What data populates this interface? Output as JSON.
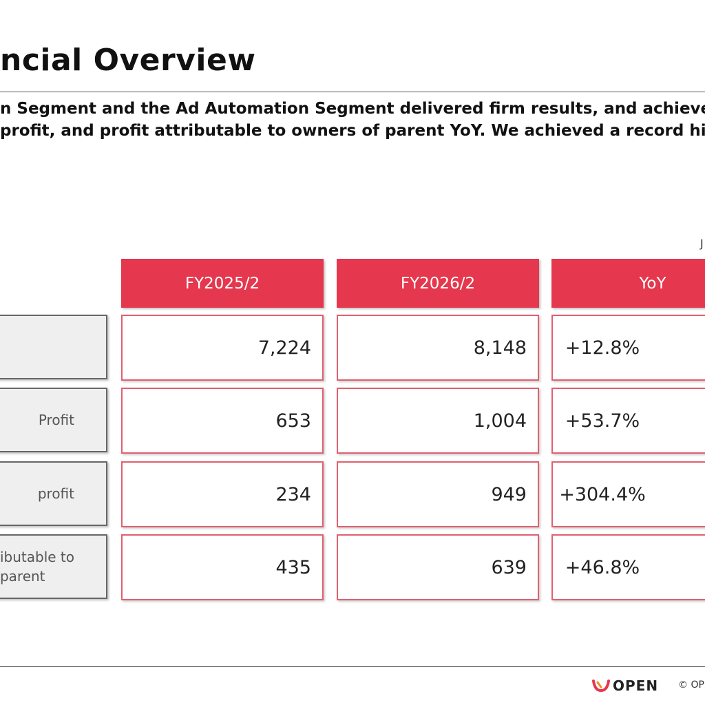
{
  "title": "ncial Overview",
  "summary": {
    "line1": "n Segment and the Ad Automation Segment delivered firm results, and achieved",
    "line2": "profit, and profit attributable to owners of parent YoY. We achieved a record hig"
  },
  "unit_note": "J",
  "table": {
    "headers": [
      "FY2025/2",
      "FY2026/2",
      "YoY"
    ],
    "rows": [
      {
        "label": "",
        "fy2025": "7,224",
        "fy2026": "8,148",
        "yoy": "+12.8%"
      },
      {
        "label": "Profit",
        "fy2025": "653",
        "fy2026": "1,004",
        "yoy": "+53.7%"
      },
      {
        "label": "profit",
        "fy2025": "234",
        "fy2026": "949",
        "yoy": "+304.4%"
      },
      {
        "label": "ibutable to\nparent",
        "fy2025": "435",
        "fy2026": "639",
        "yoy": "+46.8%"
      }
    ]
  },
  "footer": {
    "logo_text": "OPEN",
    "logo_icon": "open-swoosh-logo",
    "copyright": "© OP"
  },
  "colors": {
    "accent": "#e5374d",
    "cell_border": "#e06070",
    "label_bg": "#efefef"
  }
}
